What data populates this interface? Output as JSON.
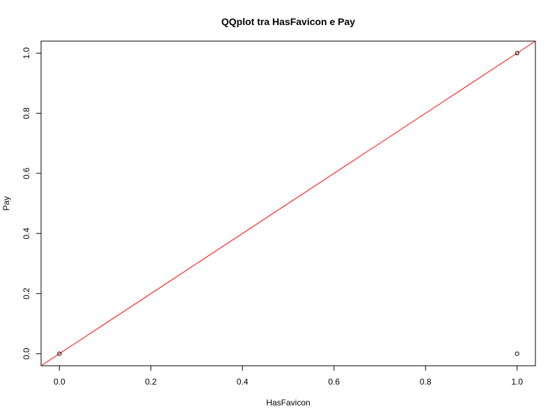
{
  "chart_data": {
    "type": "scatter",
    "title": "QQplot tra HasFavicon e Pay",
    "xlabel": "HasFavicon",
    "ylabel": "Pay",
    "xlim": [
      -0.04,
      1.04
    ],
    "ylim": [
      -0.04,
      1.04
    ],
    "x_ticks": [
      0.0,
      0.2,
      0.4,
      0.6,
      0.8,
      1.0
    ],
    "x_tick_labels": [
      "0.0",
      "0.2",
      "0.4",
      "0.6",
      "0.8",
      "1.0"
    ],
    "y_ticks": [
      0.0,
      0.2,
      0.4,
      0.6,
      0.8,
      1.0
    ],
    "y_tick_labels": [
      "0.0",
      "0.2",
      "0.4",
      "0.6",
      "0.8",
      "1.0"
    ],
    "points": [
      {
        "x": 0.0,
        "y": 0.0
      },
      {
        "x": 1.0,
        "y": 1.0
      },
      {
        "x": 1.0,
        "y": 0.0
      }
    ],
    "reference_line": {
      "intercept": 0,
      "slope": 1,
      "color": "#ff0000"
    },
    "grid": false,
    "legend": "none",
    "point_color": "#000000"
  }
}
